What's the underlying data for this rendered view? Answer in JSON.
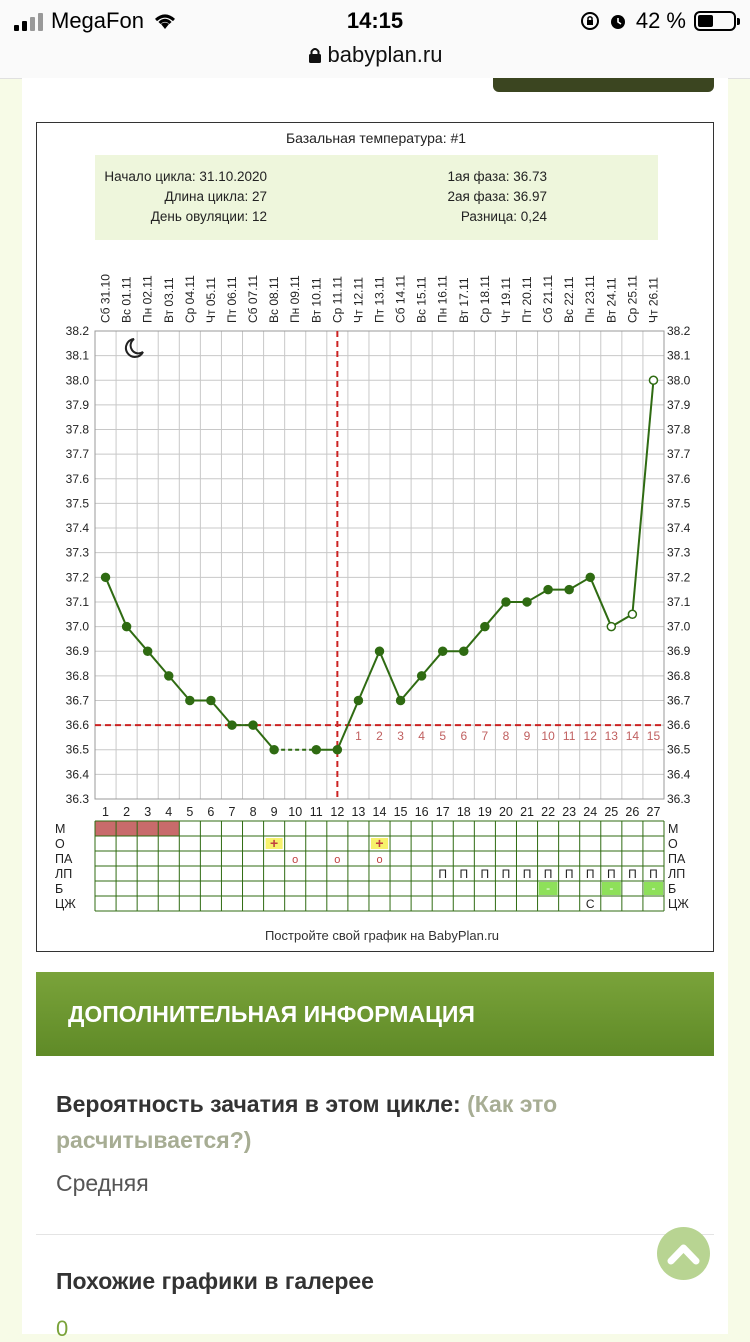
{
  "status": {
    "carrier": "MegaFon",
    "time": "14:15",
    "battery": "42 %",
    "url": "babyplan.ru"
  },
  "chart": {
    "title": "Базальная температура: #1",
    "info_left": [
      "Начало цикла: 31.10.2020",
      "Длина цикла: 27",
      "День овуляции: 12"
    ],
    "info_right": [
      "1ая фаза: 36.73",
      "2ая фаза: 36.97",
      "Разница: 0,24"
    ],
    "footer": "Постройте свой график на BabyPlan.ru",
    "row_labels": [
      "М",
      "О",
      "ПА",
      "ЛП",
      "Б",
      "ЦЖ"
    ]
  },
  "chart_data": {
    "type": "line",
    "days": [
      "1",
      "2",
      "3",
      "4",
      "5",
      "6",
      "7",
      "8",
      "9",
      "10",
      "11",
      "12",
      "13",
      "14",
      "15",
      "16",
      "17",
      "18",
      "19",
      "20",
      "21",
      "22",
      "23",
      "24",
      "25",
      "26",
      "27"
    ],
    "dates": [
      "Сб 31.10",
      "Вс 01.11",
      "Пн 02.11",
      "Вт 03.11",
      "Ср 04.11",
      "Чт 05.11",
      "Пт 06.11",
      "Сб 07.11",
      "Вс 08.11",
      "Пн 09.11",
      "Вт 10.11",
      "Ср 11.11",
      "Чт 12.11",
      "Пт 13.11",
      "Сб 14.11",
      "Вс 15.11",
      "Пн 16.11",
      "Вт 17.11",
      "Ср 18.11",
      "Чт 19.11",
      "Пт 20.11",
      "Сб 21.11",
      "Вс 22.11",
      "Пн 23.11",
      "Вт 24.11",
      "Ср 25.11",
      "Чт 26.11"
    ],
    "y_ticks": [
      "38.2",
      "38.1",
      "38.0",
      "37.9",
      "37.8",
      "37.7",
      "37.6",
      "37.5",
      "37.4",
      "37.3",
      "37.2",
      "37.1",
      "37.0",
      "36.9",
      "36.8",
      "36.7",
      "36.6",
      "36.5",
      "36.4",
      "36.3"
    ],
    "ylim": [
      36.3,
      38.2
    ],
    "series": [
      {
        "values": [
          37.2,
          37.0,
          36.9,
          36.8,
          36.7,
          36.7,
          36.6,
          36.6,
          36.5,
          null,
          36.5,
          36.5,
          36.7,
          36.9,
          36.7,
          36.8,
          36.9,
          36.9,
          37.0,
          37.1,
          37.1,
          37.15,
          37.15,
          37.2,
          37.0,
          37.05,
          38.0
        ],
        "open_points": [
          25,
          26,
          27
        ]
      }
    ],
    "coverline": 36.6,
    "ovulation_day": 12,
    "post_ovulation_labels": [
      "1",
      "2",
      "3",
      "4",
      "5",
      "6",
      "7",
      "8",
      "9",
      "10",
      "11",
      "12",
      "13",
      "14",
      "15"
    ],
    "grid": true,
    "colors": {
      "line": "#2f6b12",
      "coverline": "#cc2222",
      "menses": "#c86b6b",
      "positive": "#f7f26b",
      "spotting": "#8ee05a"
    },
    "rows": {
      "М": [
        1,
        2,
        3,
        4
      ],
      "О": {
        "14": "+",
        "9": "+"
      },
      "ПА": {
        "10": "o",
        "12": "o",
        "14": "o"
      },
      "ЛП": {
        "17": "П",
        "18": "П",
        "19": "П",
        "20": "П",
        "21": "П",
        "22": "П",
        "23": "П",
        "24": "П",
        "25": "П",
        "26": "П",
        "27": "П"
      },
      "Б": {
        "22": "-",
        "25": "-",
        "27": "-"
      },
      "ЦЖ": {
        "24": "С"
      }
    }
  },
  "info": {
    "header": "ДОПОЛНИТЕЛЬНАЯ ИНФОРМАЦИЯ",
    "question": "Вероятность зачатия в этом цикле:",
    "question_link": "(Как это расчитывается?)",
    "answer": "Средняя",
    "similar_title": "Похожие графики в галерее",
    "similar_count": "0"
  }
}
